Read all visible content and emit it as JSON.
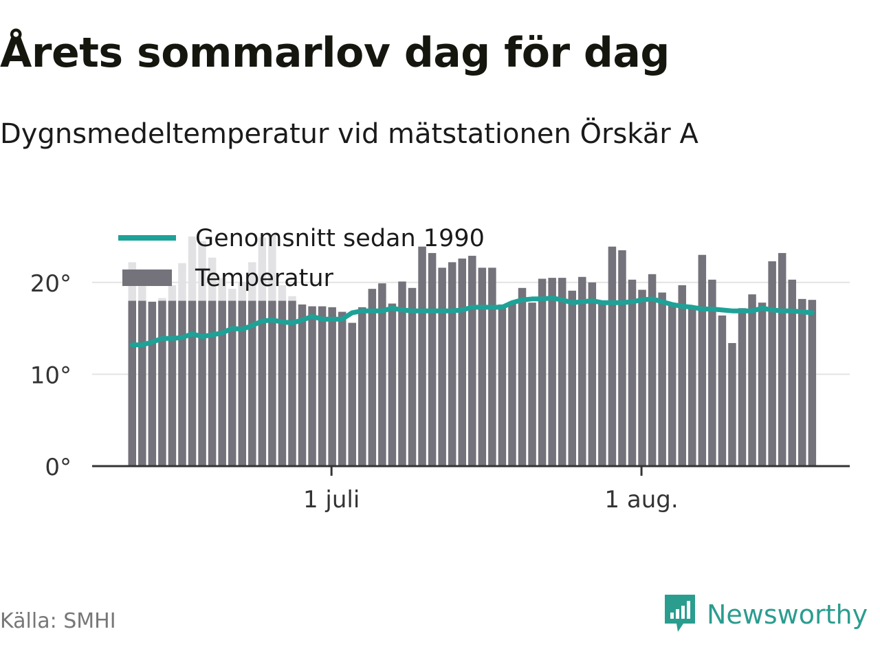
{
  "header": {
    "title": "Årets sommarlov dag för dag",
    "subtitle": "Dygnsmedeltemperatur vid mätstationen Örskär A"
  },
  "footer": {
    "source": "Källa: SMHI",
    "brand": "Newsworthy"
  },
  "colors": {
    "bar": "#74727a",
    "bar_highlight": "#e2e2e4",
    "average_line": "#1ea298",
    "grid": "#e3e3e3",
    "axis": "#333333",
    "brand": "#2a9d8f"
  },
  "icons": {
    "brand_logo": "bar-chart-speech-bubble-icon"
  },
  "chart_data": {
    "type": "bar",
    "legend": {
      "placement": "top-left",
      "entries": [
        "Genomsnitt sedan 1990",
        "Temperatur"
      ]
    },
    "yticks": [
      "0°",
      "10°",
      "20°"
    ],
    "ytick_values": [
      0,
      10,
      20
    ],
    "xticks": [
      {
        "label": "1 juli",
        "date": "2019-07-01"
      },
      {
        "label": "1 aug.",
        "date": "2019-08-01"
      }
    ],
    "ylim": [
      0,
      25
    ],
    "grid": true,
    "dates": [
      "2019-06-11",
      "2019-06-12",
      "2019-06-13",
      "2019-06-14",
      "2019-06-15",
      "2019-06-16",
      "2019-06-17",
      "2019-06-18",
      "2019-06-19",
      "2019-06-20",
      "2019-06-21",
      "2019-06-22",
      "2019-06-23",
      "2019-06-24",
      "2019-06-25",
      "2019-06-26",
      "2019-06-27",
      "2019-06-28",
      "2019-06-29",
      "2019-06-30",
      "2019-07-01",
      "2019-07-02",
      "2019-07-03",
      "2019-07-04",
      "2019-07-05",
      "2019-07-06",
      "2019-07-07",
      "2019-07-08",
      "2019-07-09",
      "2019-07-10",
      "2019-07-11",
      "2019-07-12",
      "2019-07-13",
      "2019-07-14",
      "2019-07-15",
      "2019-07-16",
      "2019-07-17",
      "2019-07-18",
      "2019-07-19",
      "2019-07-20",
      "2019-07-21",
      "2019-07-22",
      "2019-07-23",
      "2019-07-24",
      "2019-07-25",
      "2019-07-26",
      "2019-07-27",
      "2019-07-28",
      "2019-07-29",
      "2019-07-30",
      "2019-07-31",
      "2019-08-01",
      "2019-08-02",
      "2019-08-03",
      "2019-08-04",
      "2019-08-05",
      "2019-08-06",
      "2019-08-07",
      "2019-08-08",
      "2019-08-09",
      "2019-08-10",
      "2019-08-11",
      "2019-08-12",
      "2019-08-13",
      "2019-08-14",
      "2019-08-15",
      "2019-08-16",
      "2019-08-17",
      "2019-08-18"
    ],
    "series": [
      {
        "name": "Temperatur",
        "type": "bar",
        "values": [
          22.2,
          19.6,
          17.9,
          18.3,
          19.7,
          22.1,
          25.0,
          24.5,
          22.7,
          20.5,
          19.3,
          20.0,
          22.2,
          24.9,
          25.2,
          19.7,
          18.5,
          17.6,
          17.4,
          17.4,
          17.3,
          16.8,
          15.6,
          17.3,
          19.3,
          19.9,
          17.7,
          20.1,
          19.4,
          23.9,
          23.2,
          21.6,
          22.2,
          22.6,
          22.9,
          21.6,
          21.6,
          17.6,
          17.9,
          19.4,
          17.8,
          20.4,
          20.5,
          20.5,
          19.1,
          20.6,
          20.0,
          17.9,
          23.9,
          23.5,
          20.3,
          19.2,
          20.9,
          18.9,
          17.5,
          19.7,
          17.3,
          23.0,
          20.3,
          16.4,
          13.4,
          17.2,
          18.7,
          17.8,
          22.3,
          23.2,
          20.3,
          18.2,
          18.1
        ]
      },
      {
        "name": "Genomsnitt sedan 1990",
        "type": "line",
        "values": [
          13.2,
          13.2,
          13.5,
          13.9,
          13.9,
          14.0,
          14.4,
          14.1,
          14.3,
          14.5,
          15.0,
          14.9,
          15.3,
          15.8,
          15.9,
          15.7,
          15.6,
          15.9,
          16.3,
          16.0,
          16.0,
          16.0,
          16.7,
          16.9,
          16.9,
          16.9,
          17.2,
          17.0,
          16.9,
          16.9,
          16.9,
          16.9,
          16.9,
          17.0,
          17.3,
          17.3,
          17.3,
          17.3,
          17.8,
          18.1,
          18.2,
          18.2,
          18.3,
          18.1,
          17.8,
          17.9,
          18.0,
          17.8,
          17.8,
          17.8,
          17.9,
          18.1,
          18.2,
          17.9,
          17.6,
          17.4,
          17.3,
          17.1,
          17.1,
          17.0,
          16.9,
          16.9,
          16.9,
          17.2,
          17.0,
          16.9,
          16.9,
          16.8,
          16.7
        ]
      }
    ]
  }
}
